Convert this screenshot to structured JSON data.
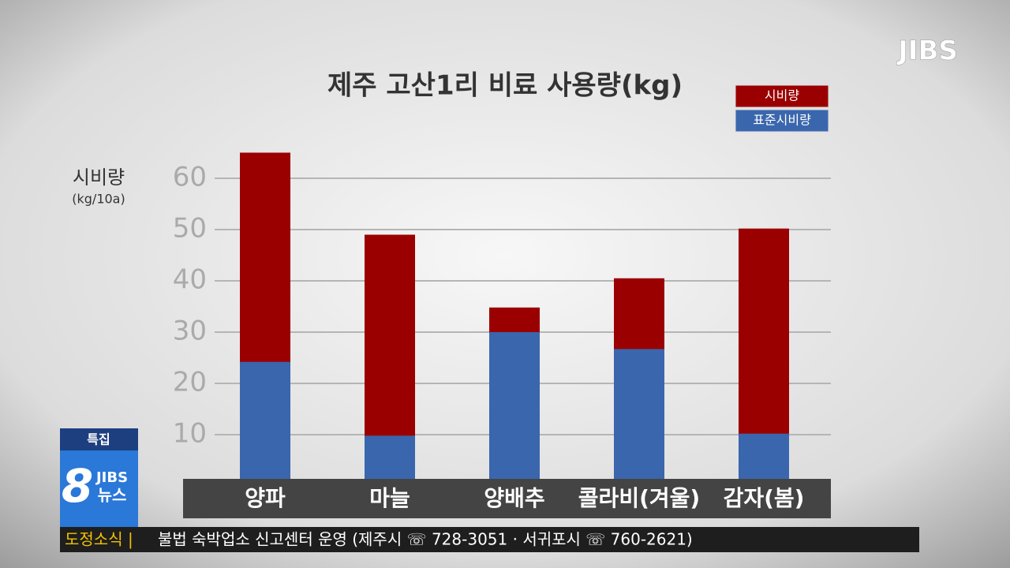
{
  "chart_data": {
    "type": "bar",
    "title": "제주 고산1리 비료 사용량(kg)",
    "y_label": "시비량",
    "y_unit": "(kg/10a)",
    "categories": [
      "양파",
      "마늘",
      "양배추",
      "콜라비(겨울)",
      "감자(봄)"
    ],
    "series": [
      {
        "name": "시비량",
        "color": "#9b0000",
        "values": [
          65,
          49,
          34.8,
          40.5,
          50.2
        ]
      },
      {
        "name": "표준시비량",
        "color": "#3a66ad",
        "values": [
          24.2,
          9.8,
          30,
          26.7,
          10.2
        ]
      }
    ],
    "ylim": [
      0,
      70
    ],
    "yticks": [
      10,
      20,
      30,
      40,
      50,
      60
    ],
    "grid": true
  },
  "broadcast": {
    "logo": "JIBS",
    "badge": "특집",
    "program_number": "8",
    "program_brand": "JIBS",
    "program_name": "뉴스",
    "ticker_label": "도정소식 |",
    "ticker_text": "불법 숙박업소 신고센터 운영 (제주시 ☏ 728-3051 · 서귀포시 ☏ 760-2621)"
  }
}
